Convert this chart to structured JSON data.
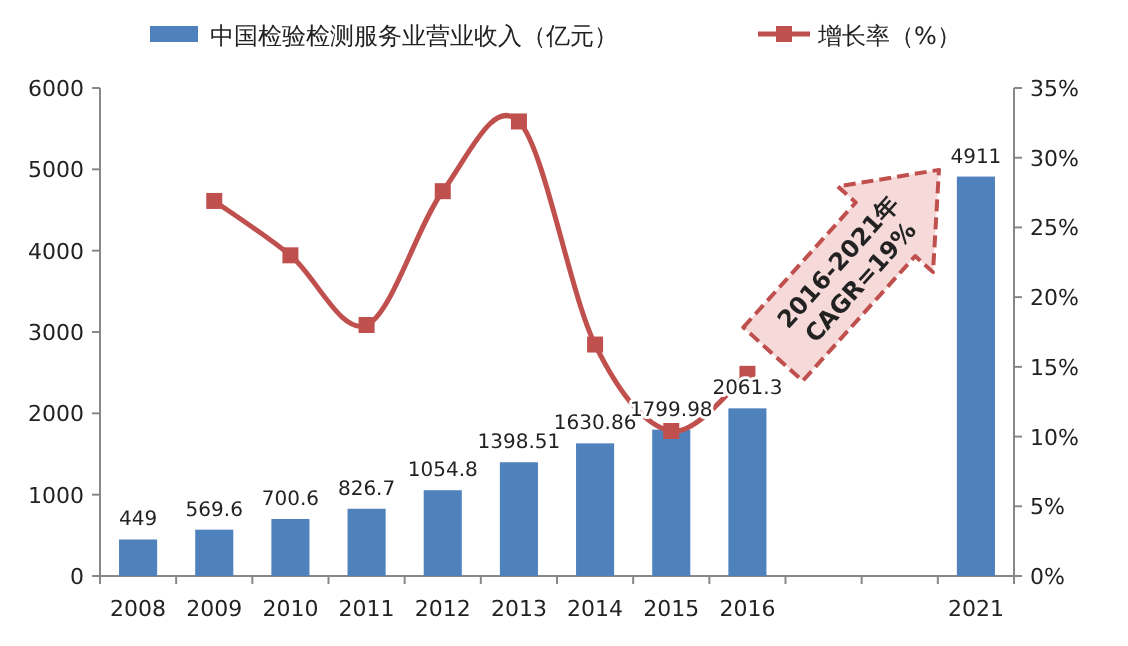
{
  "chart_data": {
    "type": "bar",
    "categories": [
      "2008",
      "2009",
      "2010",
      "2011",
      "2012",
      "2013",
      "2014",
      "2015",
      "2016",
      null,
      null,
      "2021"
    ],
    "series": [
      {
        "name": "中国检验检测服务业营业收入（亿元）",
        "color": "#4f81bd",
        "values": [
          449,
          569.6,
          700.6,
          826.7,
          1054.8,
          1398.51,
          1630.86,
          1799.98,
          2061.3,
          null,
          null,
          4911
        ],
        "value_labels": [
          "449",
          "569.6",
          "700.6",
          "826.7",
          "1054.8",
          "1398.51",
          "1630.86",
          "1799.98",
          "2061.3",
          null,
          null,
          "4911"
        ]
      },
      {
        "name": "增长率（%）",
        "type": "line",
        "axis": "y2",
        "color": "#c0504d",
        "values": [
          null,
          26.9,
          23.0,
          18.0,
          27.6,
          32.6,
          16.6,
          10.4,
          14.5,
          null,
          null,
          null
        ]
      }
    ],
    "ylim": [
      0,
      6000
    ],
    "yticks": [
      0,
      1000,
      2000,
      3000,
      4000,
      5000,
      6000
    ],
    "y2lim": [
      0,
      35
    ],
    "y2ticks": [
      {
        "value": 0,
        "label": "0%"
      },
      {
        "value": 5,
        "label": "5%"
      },
      {
        "value": 10,
        "label": "10%"
      },
      {
        "value": 15,
        "label": "15%"
      },
      {
        "value": 20,
        "label": "20%"
      },
      {
        "value": 25,
        "label": "25%"
      },
      {
        "value": 30,
        "label": "30%"
      },
      {
        "value": 35,
        "label": "35%"
      }
    ],
    "marker": "square",
    "legend": "top",
    "grid": false,
    "annotations": [
      "2016-2021年",
      "CAGR=19%"
    ]
  }
}
